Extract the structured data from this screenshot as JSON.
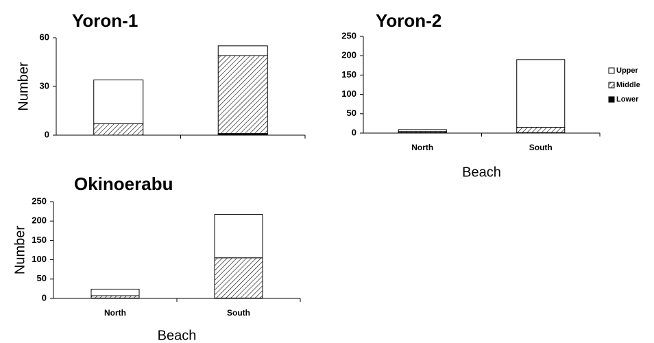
{
  "chart_data": [
    {
      "type": "bar",
      "stacked": true,
      "title": "Yoron-1",
      "ylabel": "Number",
      "categories": [
        null,
        null
      ],
      "series": [
        {
          "color": "#000000",
          "values": [
            0,
            1
          ]
        },
        {
          "color": "#000000",
          "pattern": "hatch",
          "values": [
            7,
            48
          ]
        },
        {
          "color": "#ffffff",
          "values": [
            27,
            6
          ]
        }
      ],
      "ylim": [
        0,
        60
      ],
      "yticks": [
        0,
        30,
        60
      ]
    },
    {
      "type": "bar",
      "stacked": true,
      "title": "Yoron-2",
      "xlabel": "Beach",
      "categories": [
        "North",
        "South"
      ],
      "series": [
        {
          "name": "Lower",
          "color": "#000000",
          "values": [
            1,
            1
          ]
        },
        {
          "name": "Middle",
          "color": "#000000",
          "pattern": "hatch",
          "values": [
            3,
            14
          ]
        },
        {
          "name": "Upper",
          "color": "#ffffff",
          "values": [
            5,
            175
          ]
        }
      ],
      "ylim": [
        0,
        250
      ],
      "yticks": [
        0,
        50,
        100,
        150,
        200,
        250
      ],
      "legend": "right"
    },
    {
      "type": "bar",
      "stacked": true,
      "title": "Okinoerabu",
      "ylabel": "Number",
      "xlabel": "Beach",
      "categories": [
        "North",
        "South"
      ],
      "series": [
        {
          "color": "#000000",
          "values": [
            1,
            1
          ]
        },
        {
          "color": "#000000",
          "pattern": "hatch",
          "values": [
            6,
            104
          ]
        },
        {
          "color": "#ffffff",
          "values": [
            17,
            112
          ]
        }
      ],
      "ylim": [
        0,
        250
      ],
      "yticks": [
        0,
        50,
        100,
        150,
        200,
        250
      ]
    }
  ]
}
